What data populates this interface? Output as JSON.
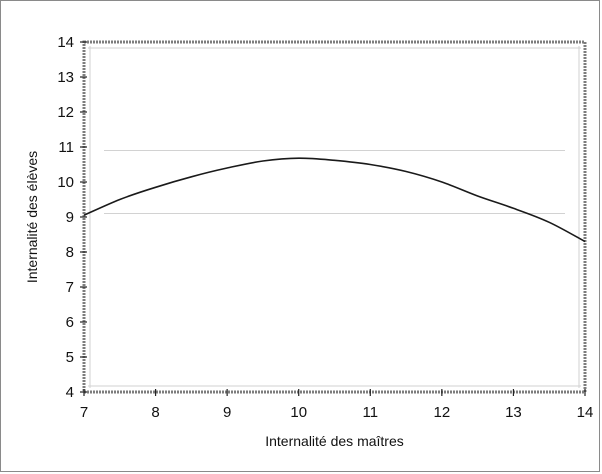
{
  "chart_data": {
    "type": "line",
    "title": "",
    "xlabel": "Internalité des maîtres",
    "ylabel": "Internalité des élèves",
    "xlim": [
      7,
      14
    ],
    "ylim": [
      4,
      14
    ],
    "x_ticks": [
      7,
      8,
      9,
      10,
      11,
      12,
      13,
      14
    ],
    "y_ticks": [
      4,
      5,
      6,
      7,
      8,
      9,
      10,
      11,
      12,
      13,
      14
    ],
    "grid": false,
    "legend": "none",
    "series": [
      {
        "x": [
          7,
          7.5,
          8,
          8.5,
          9,
          9.5,
          10,
          10.5,
          11,
          11.5,
          12,
          12.5,
          13,
          13.5,
          14
        ],
        "y": [
          9.05,
          9.5,
          9.85,
          10.15,
          10.4,
          10.6,
          10.68,
          10.62,
          10.5,
          10.3,
          10.0,
          9.6,
          9.25,
          8.85,
          8.3
        ]
      }
    ],
    "colors": {
      "line": "#1a1a1a",
      "frame": "#7d7d7d"
    }
  }
}
